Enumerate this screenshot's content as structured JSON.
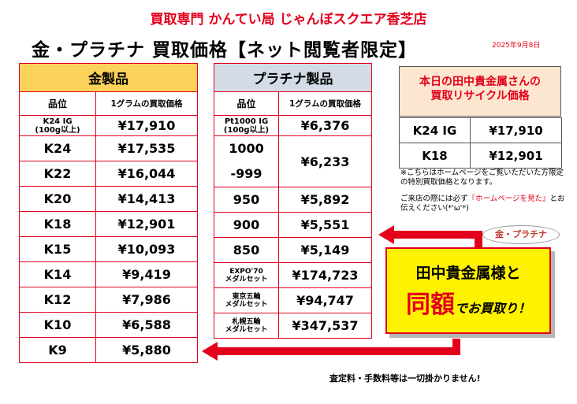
{
  "header": {
    "store_name": "買取専門 かんてい局 じゃんぼスクエア香芝店",
    "headline": "金・プラチナ 買取価格【ネット閲覧者限定】",
    "date": "2025年9月8日"
  },
  "gold_table": {
    "title": "金製品",
    "col_grade": "品位",
    "col_price": "1グラムの買取価格",
    "rows": [
      {
        "grade_l1": "K24 IG",
        "grade_l2": "(100g以上)",
        "price": "¥17,910"
      },
      {
        "grade": "K24",
        "price": "¥17,535"
      },
      {
        "grade": "K22",
        "price": "¥16,044"
      },
      {
        "grade": "K20",
        "price": "¥14,413"
      },
      {
        "grade": "K18",
        "price": "¥12,901"
      },
      {
        "grade": "K15",
        "price": "¥10,093"
      },
      {
        "grade": "K14",
        "price": "¥9,419"
      },
      {
        "grade": "K12",
        "price": "¥7,986"
      },
      {
        "grade": "K10",
        "price": "¥6,588"
      },
      {
        "grade": "K9",
        "price": "¥5,880"
      }
    ]
  },
  "platinum_table": {
    "title": "プラチナ製品",
    "col_grade": "品位",
    "col_price": "1グラムの買取価格",
    "rows": [
      {
        "grade_l1": "Pt1000 IG",
        "grade_l2": "(100g以上)",
        "price": "¥6,376"
      },
      {
        "grade_l1": "1000",
        "grade_l2": "-999",
        "price": "¥6,233"
      },
      {
        "grade": "950",
        "price": "¥5,892"
      },
      {
        "grade": "900",
        "price": "¥5,551"
      },
      {
        "grade": "850",
        "price": "¥5,149"
      },
      {
        "grade_l1": "EXPO'70",
        "grade_l2": "メダルセット",
        "price": "¥174,723"
      },
      {
        "grade_l1": "東京五輪",
        "grade_l2": "メダルセット",
        "price": "¥94,747"
      },
      {
        "grade_l1": "札幌五輪",
        "grade_l2": "メダルセット",
        "price": "¥347,537"
      }
    ]
  },
  "tanaka": {
    "title_l1": "本日の田中貴金属さんの",
    "title_l2": "買取リサイクル価格",
    "rows": [
      {
        "grade": "K24 IG",
        "price": "¥17,910"
      },
      {
        "grade": "K18",
        "price": "¥12,901"
      }
    ],
    "note1": "※こちらはホームページをご覧いただいた方限定の特別買取価格となります。",
    "note2_a": "ご来店の際には必ず",
    "note2_red": "『ホームページを見た』",
    "note2_b": "とお伝えください(*'ω'*)"
  },
  "promo": {
    "bubble": "金・プラチナ",
    "line1": "田中貴金属様と",
    "big": "同額",
    "rest": "でお買取り！"
  },
  "footer": "査定料・手数料等は一切掛かりません!",
  "colors": {
    "accent_red": "#e3001b",
    "gold_header": "#fbd25a",
    "plat_header": "#d3dce6",
    "promo_yellow": "#fff200"
  }
}
